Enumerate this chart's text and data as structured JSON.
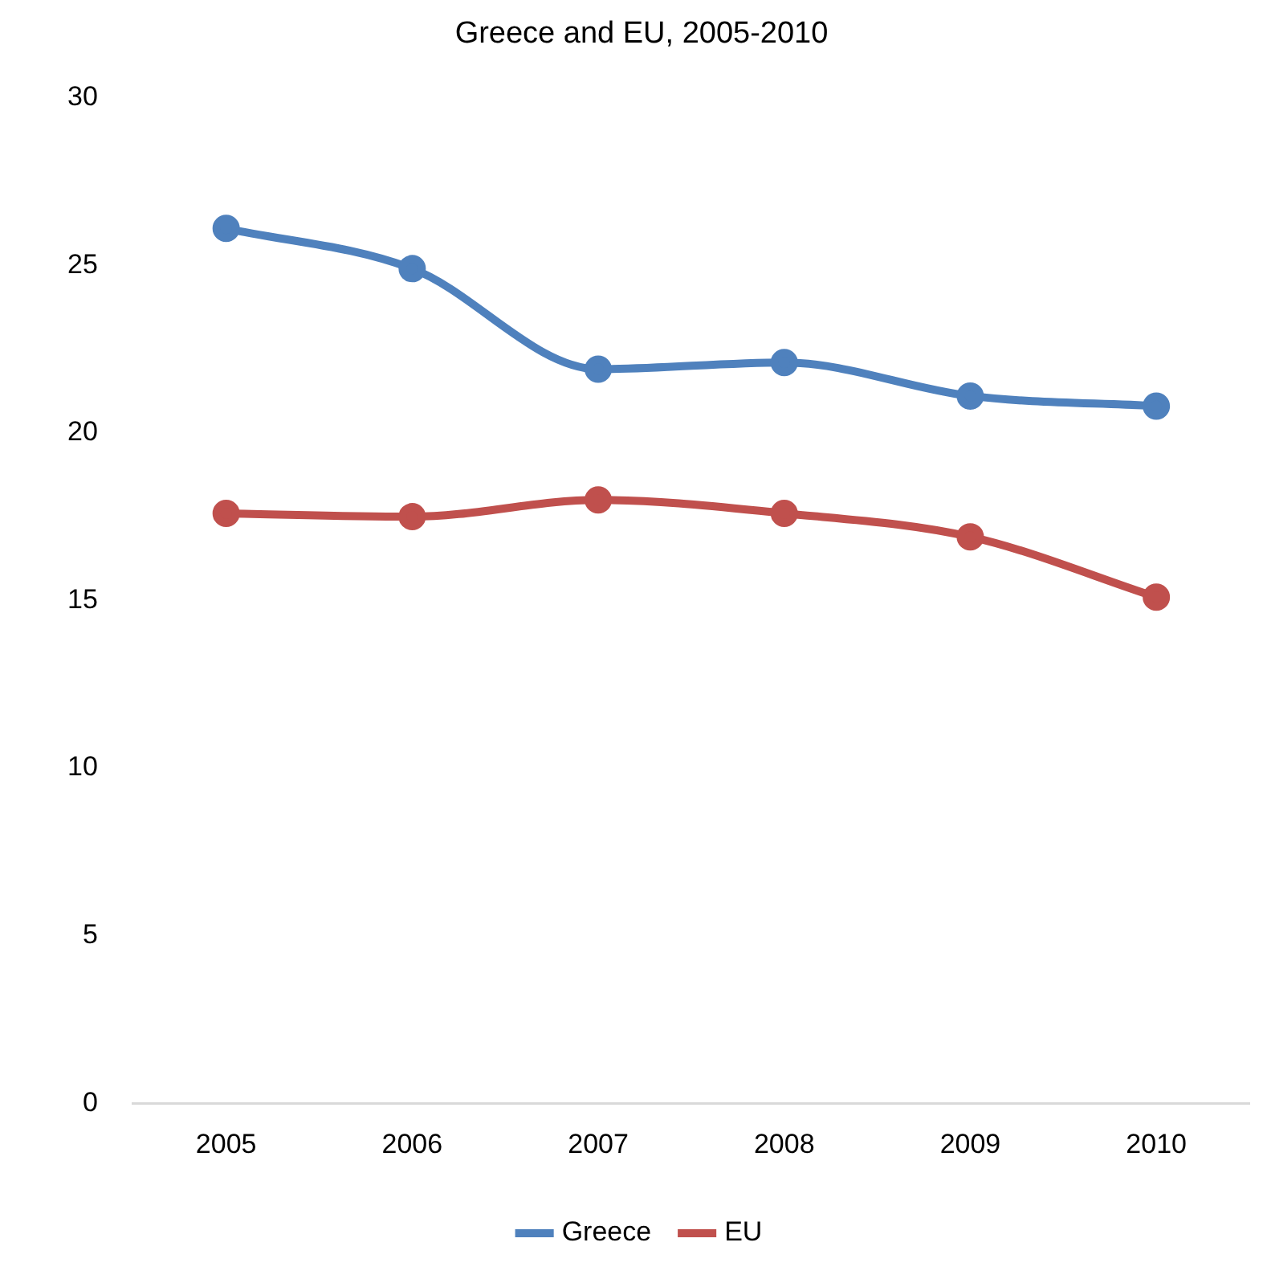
{
  "chart_data": {
    "type": "line",
    "title": "Greece and EU, 2005-2010",
    "categories": [
      "2005",
      "2006",
      "2007",
      "2008",
      "2009",
      "2010"
    ],
    "series": [
      {
        "name": "Greece",
        "color": "#4f81bd",
        "values": [
          26.1,
          24.9,
          21.9,
          22.1,
          21.1,
          20.8
        ]
      },
      {
        "name": "EU",
        "color": "#c0504d",
        "values": [
          17.6,
          17.5,
          18.0,
          17.6,
          16.9,
          15.1
        ]
      }
    ],
    "ylim": [
      0,
      30
    ],
    "yticks": [
      0,
      5,
      10,
      15,
      20,
      25,
      30
    ],
    "legend": "bottom",
    "marker": "circle",
    "line_style": "solid"
  }
}
